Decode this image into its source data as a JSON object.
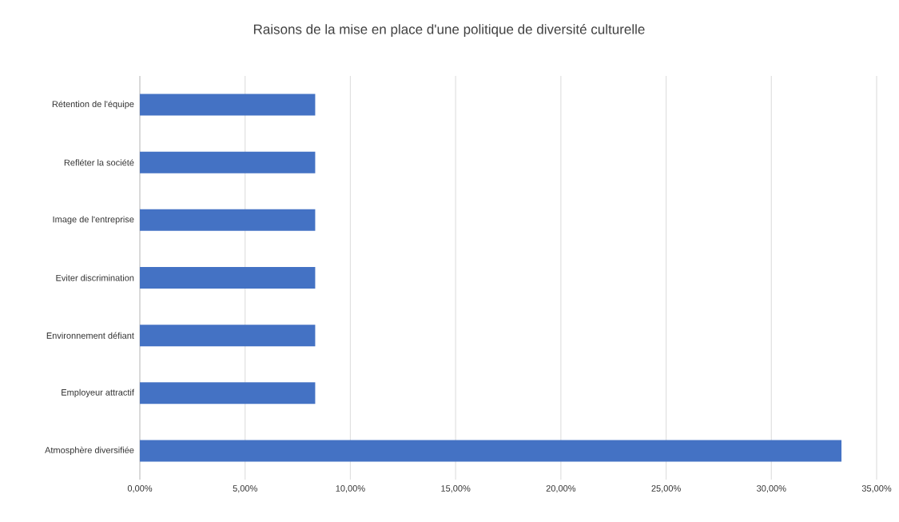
{
  "chart_data": {
    "type": "bar",
    "orientation": "horizontal",
    "title": "Raisons de la mise en place d'une politique de diversité culturelle",
    "categories": [
      "Rétention de l'équipe",
      "Refléter la société",
      "Image de l'entreprise",
      "Eviter discrimination",
      "Environnement défiant",
      "Employeur attractif",
      "Atmosphère diversifiée"
    ],
    "values": [
      8.33,
      8.33,
      8.33,
      8.33,
      8.33,
      8.33,
      33.33
    ],
    "color": "#4472c4",
    "xlim": [
      0,
      35
    ],
    "xticks": [
      {
        "value": 0,
        "label": "0,00%"
      },
      {
        "value": 5,
        "label": "5,00%"
      },
      {
        "value": 10,
        "label": "10,00%"
      },
      {
        "value": 15,
        "label": "15,00%"
      },
      {
        "value": 20,
        "label": "20,00%"
      },
      {
        "value": 25,
        "label": "25,00%"
      },
      {
        "value": 30,
        "label": "30,00%"
      },
      {
        "value": 35,
        "label": "35,00%"
      }
    ],
    "grid": "x"
  }
}
